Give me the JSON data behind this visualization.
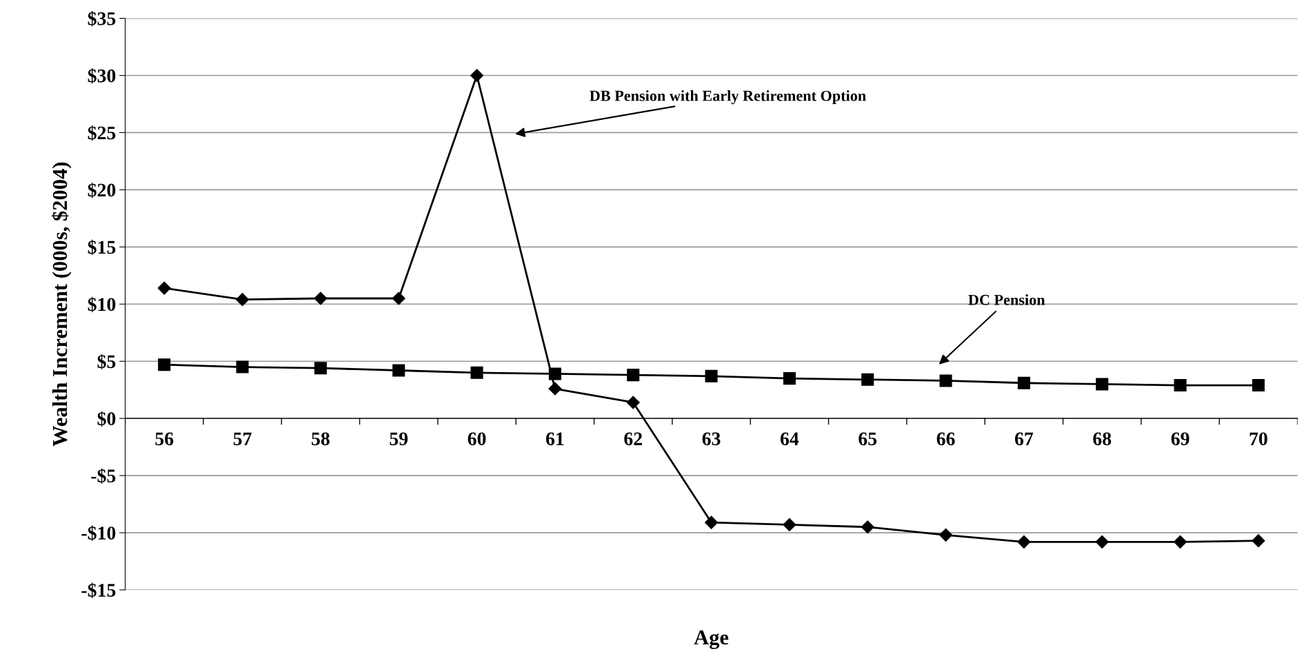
{
  "chart_data": {
    "type": "line",
    "xlabel": "Age",
    "ylabel": "Wealth Increment (000s, $2004)",
    "categories": [
      "56",
      "57",
      "58",
      "59",
      "60",
      "61",
      "62",
      "63",
      "64",
      "65",
      "66",
      "67",
      "68",
      "69",
      "70"
    ],
    "series": [
      {
        "color": "#000000",
        "marker": "diamond",
        "values": [
          11.4,
          10.4,
          10.5,
          10.5,
          30,
          2.6,
          1.4,
          -9.1,
          -9.3,
          -9.5,
          -10.2,
          -10.8,
          -10.8,
          -10.8,
          -10.7
        ]
      },
      {
        "color": "#000000",
        "marker": "square",
        "values": [
          4.7,
          4.5,
          4.4,
          4.2,
          4.0,
          3.9,
          3.8,
          3.7,
          3.5,
          3.4,
          3.3,
          3.1,
          3.0,
          2.9,
          2.9
        ]
      }
    ],
    "annotations": [
      "DB Pension with Early Retirement Option",
      "DC Pension"
    ],
    "ylim": [
      -15,
      35
    ],
    "yticks": [
      {
        "value": -15,
        "label": "-$15"
      },
      {
        "value": -10,
        "label": "-$10"
      },
      {
        "value": -5,
        "label": "-$5"
      },
      {
        "value": 0,
        "label": "$0"
      },
      {
        "value": 5,
        "label": "$5"
      },
      {
        "value": 10,
        "label": "$10"
      },
      {
        "value": 15,
        "label": "$15"
      },
      {
        "value": 20,
        "label": "$20"
      },
      {
        "value": 25,
        "label": "$25"
      },
      {
        "value": 30,
        "label": "$30"
      },
      {
        "value": 35,
        "label": "$35"
      }
    ],
    "grid": "y",
    "line_style": "solid"
  }
}
